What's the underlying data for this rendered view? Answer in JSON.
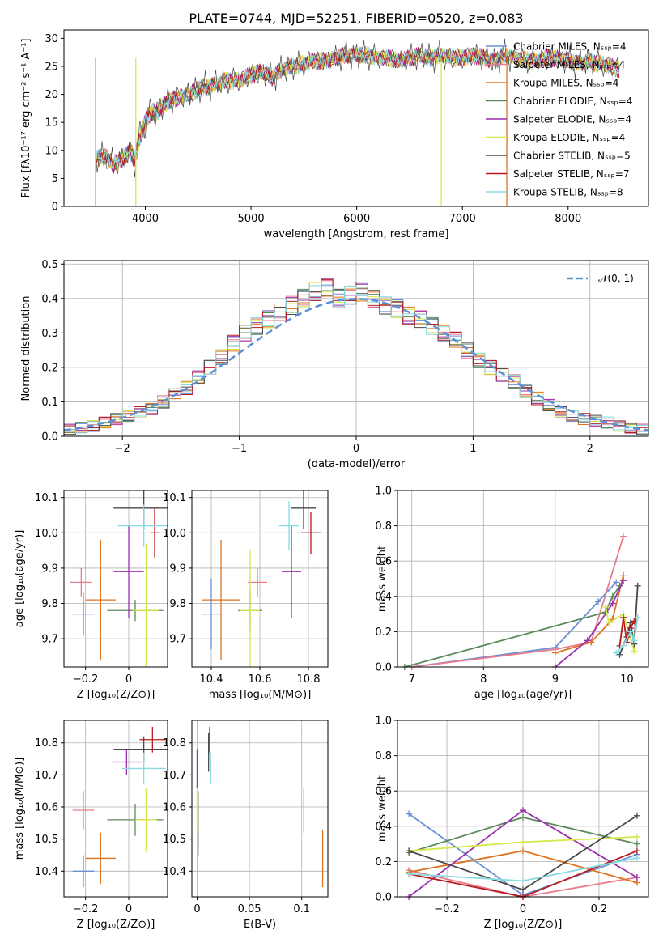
{
  "colors": [
    "#6a8ed4",
    "#e97c8c",
    "#e0731f",
    "#5a8a5a",
    "#9b2fae",
    "#d6e84a",
    "#4a4a4a",
    "#b81b1b",
    "#86dbe2"
  ],
  "charts": [
    {
      "type": "line",
      "title": "PLATE=0744, MJD=52251, FIBERID=0520, z=0.083",
      "xlabel": "wavelength [Angstrom, rest frame]",
      "ylabel": "Flux [fλ10⁻¹⁷ erg cm⁻² s⁻¹ A⁻¹]",
      "xlim": [
        3230,
        8760
      ],
      "ylim": [
        0,
        31.5
      ],
      "xticks": [
        4000,
        5000,
        6000,
        7000,
        8000
      ],
      "yticks": [
        0,
        5,
        10,
        15,
        20,
        25,
        30
      ],
      "legend_position": "right",
      "legend": [
        {
          "label": "Chabrier MILES, Nₛₛₚ=4",
          "color": "#6a8ed4"
        },
        {
          "label": "Salpeter MILES, Nₛₛₚ=4",
          "color": "#e97c8c"
        },
        {
          "label": "Kroupa MILES, Nₛₛₚ=4",
          "color": "#e0731f"
        },
        {
          "label": "Chabrier ELODIE, Nₛₛₚ=4",
          "color": "#5a8a5a"
        },
        {
          "label": "Salpeter ELODIE, Nₛₛₚ=4",
          "color": "#9b2fae"
        },
        {
          "label": "Kroupa ELODIE, Nₛₛₚ=4",
          "color": "#d6e84a"
        },
        {
          "label": "Chabrier STELIB, Nₛₛₚ=5",
          "color": "#4a4a4a"
        },
        {
          "label": "Salpeter STELIB, Nₛₛₚ=7",
          "color": "#b81b1b"
        },
        {
          "label": "Kroupa STELIB, Nₛₛₚ=8",
          "color": "#86dbe2"
        }
      ],
      "x": [
        3530,
        3620,
        3700,
        3780,
        3860,
        3900,
        3940,
        3980,
        4020,
        4060,
        4100,
        4160,
        4240,
        4330,
        4420,
        4500,
        4600,
        4700,
        4800,
        4900,
        5000,
        5100,
        5200,
        5300,
        5400,
        5500,
        5600,
        5700,
        5800,
        5900,
        6000,
        6100,
        6200,
        6300,
        6400,
        6500,
        6600,
        6700,
        6800,
        6900,
        7000,
        7100,
        7200,
        7300,
        7400,
        7500,
        7600,
        7700,
        7800,
        7900,
        8000,
        8100,
        8200,
        8300,
        8400,
        8500
      ],
      "y": [
        8.5,
        9.0,
        7.5,
        8.5,
        10.0,
        8.0,
        12.0,
        14.0,
        16.0,
        17.0,
        16.5,
        18.0,
        19.0,
        19.5,
        20.0,
        21.0,
        21.5,
        22.0,
        22.5,
        22.5,
        23.5,
        24.0,
        23.0,
        24.5,
        25.0,
        25.5,
        26.0,
        26.0,
        26.5,
        27.0,
        27.0,
        27.0,
        26.5,
        26.5,
        26.0,
        26.5,
        27.0,
        26.5,
        27.0,
        26.5,
        26.5,
        27.0,
        26.5,
        26.0,
        27.0,
        26.5,
        26.0,
        26.0,
        26.5,
        26.5,
        26.0,
        25.5,
        26.0,
        25.5,
        25.0,
        24.5
      ]
    },
    {
      "type": "histogram",
      "xlabel": "(data-model)/error",
      "ylabel": "Normed distribution",
      "xlim": [
        -2.5,
        2.5
      ],
      "ylim": [
        0,
        0.51
      ],
      "xticks": [
        -2,
        -1,
        0,
        1,
        2
      ],
      "yticks": [
        0.0,
        0.1,
        0.2,
        0.3,
        0.4,
        0.5
      ],
      "legend_position": "top-right",
      "legend": [
        {
          "label": "𝒩(0, 1)",
          "color": "#5b8fd6"
        }
      ],
      "bin_width": 0.1,
      "x": [
        -2.45,
        -2.35,
        -2.25,
        -2.15,
        -2.05,
        -1.95,
        -1.85,
        -1.75,
        -1.65,
        -1.55,
        -1.45,
        -1.35,
        -1.25,
        -1.15,
        -1.05,
        -0.95,
        -0.85,
        -0.75,
        -0.65,
        -0.55,
        -0.45,
        -0.35,
        -0.25,
        -0.15,
        -0.05,
        0.05,
        0.15,
        0.25,
        0.35,
        0.45,
        0.55,
        0.65,
        0.75,
        0.85,
        0.95,
        1.05,
        1.15,
        1.25,
        1.35,
        1.45,
        1.55,
        1.65,
        1.75,
        1.85,
        1.95,
        2.05,
        2.15,
        2.25,
        2.35,
        2.45
      ],
      "y": [
        0.02,
        0.025,
        0.03,
        0.04,
        0.05,
        0.06,
        0.07,
        0.08,
        0.1,
        0.12,
        0.14,
        0.17,
        0.2,
        0.23,
        0.27,
        0.3,
        0.32,
        0.34,
        0.36,
        0.38,
        0.4,
        0.42,
        0.43,
        0.4,
        0.41,
        0.42,
        0.4,
        0.38,
        0.37,
        0.35,
        0.34,
        0.32,
        0.3,
        0.28,
        0.25,
        0.22,
        0.2,
        0.18,
        0.16,
        0.13,
        0.11,
        0.09,
        0.07,
        0.06,
        0.05,
        0.045,
        0.04,
        0.03,
        0.025,
        0.02
      ]
    },
    {
      "type": "scatter",
      "xlabel": "Z [log₁₀(Z/Z⊙)]",
      "ylabel": "age  [log₁₀(age/yr)]",
      "xlim": [
        -0.3,
        0.18
      ],
      "ylim": [
        9.62,
        10.12
      ],
      "xticks": [
        -0.2,
        0.0
      ],
      "yticks": [
        9.7,
        9.8,
        9.9,
        10.0,
        10.1
      ],
      "points": [
        {
          "x": -0.21,
          "y": 9.77,
          "xerr": 0.05,
          "yerr": 0.06,
          "color": "#6a8ed4"
        },
        {
          "x": -0.22,
          "y": 9.86,
          "xerr": 0.05,
          "yerr": 0.04,
          "color": "#e97c8c"
        },
        {
          "x": -0.13,
          "y": 9.81,
          "xerr": 0.07,
          "yerr": 0.17,
          "color": "#e0731f"
        },
        {
          "x": 0.03,
          "y": 9.78,
          "xerr": 0.13,
          "yerr": 0.03,
          "color": "#5a8a5a"
        },
        {
          "x": 0.0,
          "y": 9.89,
          "xerr": 0.07,
          "yerr": 0.13,
          "color": "#9b2fae"
        },
        {
          "x": 0.08,
          "y": 9.78,
          "xerr": 0.06,
          "yerr": 0.19,
          "color": "#d6e84a"
        },
        {
          "x": 0.07,
          "y": 10.07,
          "xerr": 0.14,
          "yerr": 0.06,
          "color": "#4a4a4a"
        },
        {
          "x": 0.12,
          "y": 10.0,
          "xerr": 0.02,
          "yerr": 0.07,
          "color": "#b81b1b"
        },
        {
          "x": 0.07,
          "y": 10.02,
          "xerr": 0.12,
          "yerr": 0.06,
          "color": "#86dbe2"
        }
      ]
    },
    {
      "type": "scatter",
      "xlabel": "mass [log₁₀(M/M⊙)]",
      "ylabel": "",
      "xlim": [
        10.32,
        10.88
      ],
      "ylim": [
        9.62,
        10.12
      ],
      "xticks": [
        10.4,
        10.6,
        10.8
      ],
      "yticks": [
        9.7,
        9.8,
        9.9,
        10.0,
        10.1
      ],
      "points": [
        {
          "x": 10.4,
          "y": 9.77,
          "xerr": 0.04,
          "yerr": 0.1,
          "color": "#6a8ed4"
        },
        {
          "x": 10.59,
          "y": 9.86,
          "xerr": 0.04,
          "yerr": 0.04,
          "color": "#e97c8c"
        },
        {
          "x": 10.44,
          "y": 9.81,
          "xerr": 0.08,
          "yerr": 0.17,
          "color": "#e0731f"
        },
        {
          "x": 10.56,
          "y": 9.78,
          "xerr": 0.05,
          "yerr": 0.06,
          "color": "#5a8a5a"
        },
        {
          "x": 10.73,
          "y": 9.89,
          "xerr": 0.04,
          "yerr": 0.13,
          "color": "#9b2fae"
        },
        {
          "x": 10.56,
          "y": 9.78,
          "xerr": 0.04,
          "yerr": 0.17,
          "color": "#d6e84a"
        },
        {
          "x": 10.78,
          "y": 10.07,
          "xerr": 0.05,
          "yerr": 0.06,
          "color": "#4a4a4a"
        },
        {
          "x": 10.81,
          "y": 10.0,
          "xerr": 0.04,
          "yerr": 0.06,
          "color": "#b81b1b"
        },
        {
          "x": 10.72,
          "y": 10.02,
          "xerr": 0.04,
          "yerr": 0.07,
          "color": "#86dbe2"
        }
      ]
    },
    {
      "type": "line",
      "xlabel": "age  [log₁₀(age/yr)]",
      "ylabel": "mass weight",
      "xlim": [
        6.8,
        10.3
      ],
      "ylim": [
        0,
        1.0
      ],
      "xticks": [
        7,
        8,
        9,
        10
      ],
      "yticks": [
        0.0,
        0.2,
        0.4,
        0.6,
        0.8,
        1.0
      ],
      "series": [
        {
          "color": "#6a8ed4",
          "x": [
            7.0,
            9.0,
            9.6,
            9.85
          ],
          "y": [
            0.0,
            0.11,
            0.37,
            0.48
          ]
        },
        {
          "color": "#e97c8c",
          "x": [
            7.0,
            9.0,
            9.5,
            9.95
          ],
          "y": [
            0.0,
            0.1,
            0.14,
            0.74
          ]
        },
        {
          "color": "#e0731f",
          "x": [
            9.0,
            9.5,
            9.8,
            9.95
          ],
          "y": [
            0.08,
            0.14,
            0.27,
            0.52
          ]
        },
        {
          "color": "#5a8a5a",
          "x": [
            6.9,
            9.7,
            9.8,
            9.9
          ],
          "y": [
            0.0,
            0.31,
            0.4,
            0.46
          ]
        },
        {
          "color": "#9b2fae",
          "x": [
            9.0,
            9.45,
            9.8,
            9.95
          ],
          "y": [
            0.0,
            0.15,
            0.36,
            0.49
          ]
        },
        {
          "color": "#d6e84a",
          "x": [
            9.7,
            9.75,
            9.95,
            10.1
          ],
          "y": [
            0.34,
            0.25,
            0.3,
            0.09
          ]
        },
        {
          "color": "#4a4a4a",
          "x": [
            9.9,
            10.0,
            10.05,
            10.1,
            10.15
          ],
          "y": [
            0.07,
            0.17,
            0.25,
            0.13,
            0.46
          ]
        },
        {
          "color": "#b81b1b",
          "x": [
            9.9,
            9.95,
            10.0,
            10.05,
            10.1
          ],
          "y": [
            0.12,
            0.28,
            0.14,
            0.22,
            0.26
          ]
        },
        {
          "color": "#86dbe2",
          "x": [
            9.85,
            9.95,
            10.05,
            10.1,
            10.15
          ],
          "y": [
            0.08,
            0.12,
            0.2,
            0.15,
            0.28
          ]
        }
      ]
    },
    {
      "type": "scatter",
      "xlabel": "Z [log₁₀(Z/Z⊙)]",
      "ylabel": "mass [log₁₀(M/M⊙)]",
      "xlim": [
        -0.3,
        0.18
      ],
      "ylim": [
        10.32,
        10.87
      ],
      "xticks": [
        -0.2,
        0.0
      ],
      "yticks": [
        10.4,
        10.5,
        10.6,
        10.7,
        10.8
      ],
      "points": [
        {
          "x": -0.21,
          "y": 10.4,
          "xerr": 0.05,
          "yerr": 0.05,
          "color": "#6a8ed4"
        },
        {
          "x": -0.21,
          "y": 10.59,
          "xerr": 0.05,
          "yerr": 0.06,
          "color": "#e97c8c"
        },
        {
          "x": -0.13,
          "y": 10.44,
          "xerr": 0.07,
          "yerr": 0.08,
          "color": "#e0731f"
        },
        {
          "x": 0.03,
          "y": 10.56,
          "xerr": 0.13,
          "yerr": 0.05,
          "color": "#5a8a5a"
        },
        {
          "x": -0.01,
          "y": 10.74,
          "xerr": 0.07,
          "yerr": 0.04,
          "color": "#9b2fae"
        },
        {
          "x": 0.08,
          "y": 10.56,
          "xerr": 0.05,
          "yerr": 0.1,
          "color": "#d6e84a"
        },
        {
          "x": 0.07,
          "y": 10.78,
          "xerr": 0.14,
          "yerr": 0.04,
          "color": "#4a4a4a"
        },
        {
          "x": 0.11,
          "y": 10.81,
          "xerr": 0.06,
          "yerr": 0.04,
          "color": "#b81b1b"
        },
        {
          "x": 0.07,
          "y": 10.72,
          "xerr": 0.1,
          "yerr": 0.05,
          "color": "#86dbe2"
        }
      ]
    },
    {
      "type": "scatter",
      "xlabel": "E(B-V)",
      "ylabel": "",
      "xlim": [
        -0.005,
        0.125
      ],
      "ylim": [
        10.32,
        10.87
      ],
      "xticks": [
        0.0,
        0.05,
        0.1
      ],
      "yticks": [
        10.4,
        10.5,
        10.6,
        10.7,
        10.8
      ],
      "points": [
        {
          "x": 0.0,
          "y": 10.6,
          "xerr": 0,
          "yerr": 0.07,
          "color": "#d6e84a"
        },
        {
          "x": 0.001,
          "y": 10.55,
          "xerr": 0,
          "yerr": 0.1,
          "color": "#5a8a5a"
        },
        {
          "x": 0.0,
          "y": 10.72,
          "xerr": 0,
          "yerr": 0.06,
          "color": "#9b2fae"
        },
        {
          "x": 0.011,
          "y": 10.77,
          "xerr": 0,
          "yerr": 0.06,
          "color": "#4a4a4a"
        },
        {
          "x": 0.012,
          "y": 10.81,
          "xerr": 0,
          "yerr": 0.04,
          "color": "#b81b1b"
        },
        {
          "x": 0.013,
          "y": 10.72,
          "xerr": 0,
          "yerr": 0.05,
          "color": "#86dbe2"
        },
        {
          "x": 0.102,
          "y": 10.59,
          "xerr": 0,
          "yerr": 0.07,
          "color": "#e97c8c"
        },
        {
          "x": 0.12,
          "y": 10.44,
          "xerr": 0,
          "yerr": 0.09,
          "color": "#e0731f"
        }
      ]
    },
    {
      "type": "line",
      "xlabel": "Z [log₁₀(Z/Z⊙)]",
      "ylabel": "mass weight",
      "xlim": [
        -0.33,
        0.33
      ],
      "ylim": [
        0,
        1.0
      ],
      "xticks": [
        -0.2,
        0.0,
        0.2
      ],
      "yticks": [
        0.0,
        0.2,
        0.4,
        0.6,
        0.8,
        1.0
      ],
      "series": [
        {
          "color": "#6a8ed4",
          "x": [
            -0.3,
            0.0,
            0.3
          ],
          "y": [
            0.47,
            0.01,
            0.24
          ]
        },
        {
          "color": "#e97c8c",
          "x": [
            -0.3,
            0.0,
            0.3
          ],
          "y": [
            0.15,
            0.0,
            0.11
          ]
        },
        {
          "color": "#e0731f",
          "x": [
            -0.3,
            0.0,
            0.3
          ],
          "y": [
            0.14,
            0.26,
            0.08
          ]
        },
        {
          "color": "#5a8a5a",
          "x": [
            -0.3,
            0.0,
            0.3
          ],
          "y": [
            0.25,
            0.45,
            0.3
          ]
        },
        {
          "color": "#9b2fae",
          "x": [
            -0.3,
            0.0,
            0.3
          ],
          "y": [
            0.0,
            0.49,
            0.11
          ]
        },
        {
          "color": "#d6e84a",
          "x": [
            -0.3,
            0.0,
            0.3
          ],
          "y": [
            0.26,
            0.31,
            0.34
          ]
        },
        {
          "color": "#4a4a4a",
          "x": [
            -0.3,
            0.0,
            0.3
          ],
          "y": [
            0.26,
            0.04,
            0.46
          ]
        },
        {
          "color": "#b81b1b",
          "x": [
            -0.3,
            0.0,
            0.3
          ],
          "y": [
            0.13,
            0.0,
            0.26
          ]
        },
        {
          "color": "#86dbe2",
          "x": [
            -0.3,
            0.0,
            0.3
          ],
          "y": [
            0.13,
            0.09,
            0.22
          ]
        }
      ]
    }
  ]
}
